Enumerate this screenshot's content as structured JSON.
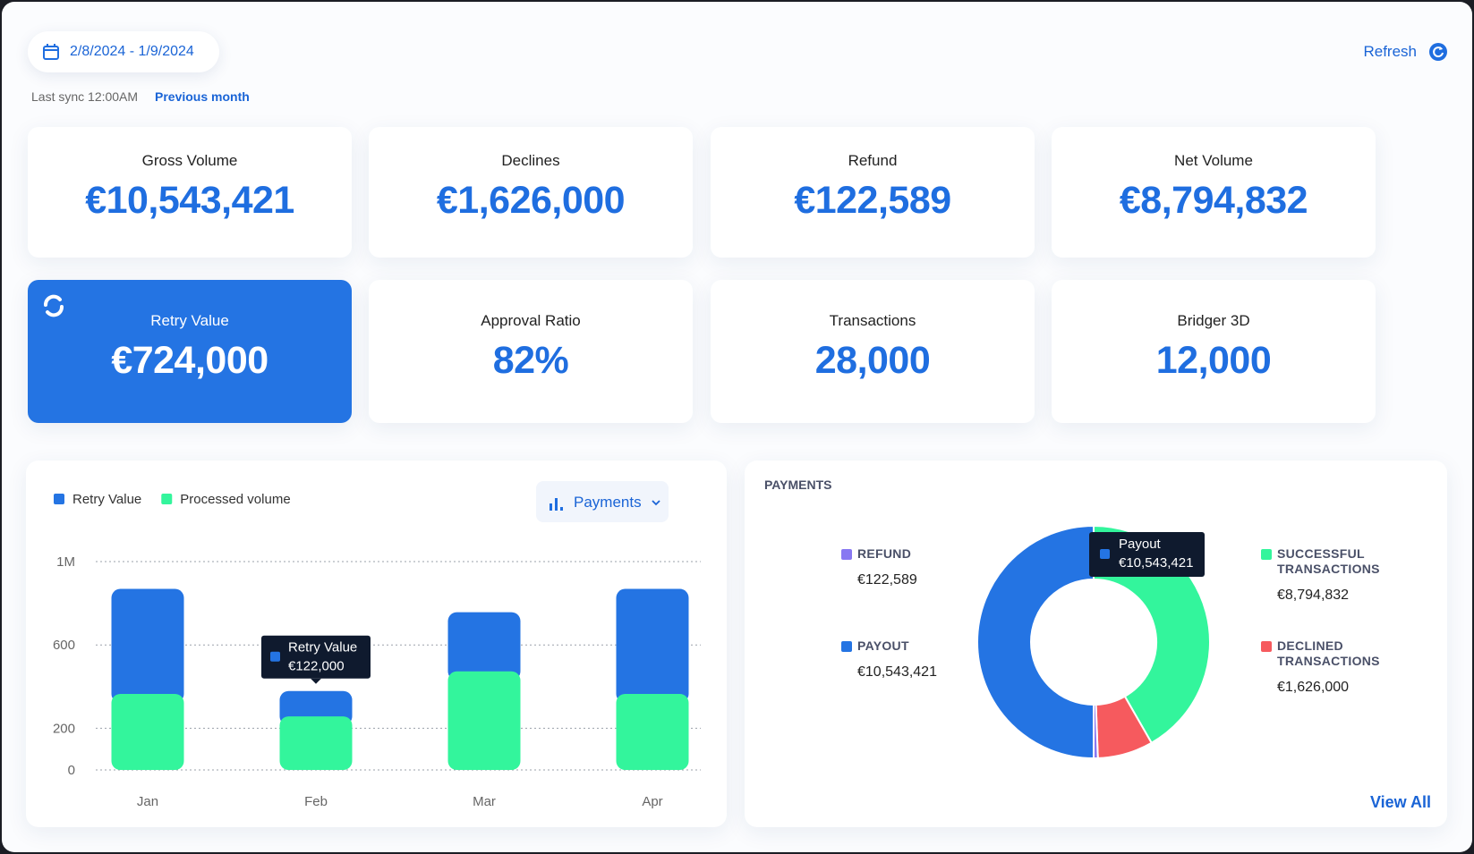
{
  "header": {
    "date_range": "2/8/2024 - 1/9/2024",
    "sync": "Last sync 12:00AM",
    "period": "Previous month",
    "refresh": "Refresh"
  },
  "cards": [
    {
      "label": "Gross Volume",
      "value": "€10,543,421"
    },
    {
      "label": "Declines",
      "value": "€1,626,000"
    },
    {
      "label": "Refund",
      "value": "€122,589"
    },
    {
      "label": "Net Volume",
      "value": "€8,794,832"
    },
    {
      "label": "Retry Value",
      "value": "€724,000"
    },
    {
      "label": "Approval Ratio",
      "value": "82%"
    },
    {
      "label": "Transactions",
      "value": "28,000"
    },
    {
      "label": "Bridger 3D",
      "value": "12,000"
    }
  ],
  "chart_data": [
    {
      "type": "bar",
      "stacked": true,
      "dropdown": "Payments",
      "categories": [
        "Jan",
        "Feb",
        "Mar",
        "Apr"
      ],
      "series": [
        {
          "name": "Retry Value",
          "color": "#2474e3",
          "values": [
            504,
            122,
            284,
            504
          ],
          "value_labels": [
            null,
            "€122,000",
            null,
            null
          ]
        },
        {
          "name": "Processed volume",
          "color": "#33f59c",
          "values": [
            365,
            257,
            473,
            365
          ]
        }
      ],
      "ylim": [
        0,
        1000
      ],
      "yticks": [
        0,
        200,
        600,
        {
          "value": 1000,
          "label": "1M"
        }
      ],
      "grid": true
    },
    {
      "type": "donut",
      "title": "PAYMENTS",
      "categories": [
        "REFUND",
        "PAYOUT",
        "SUCCESSFUL TRANSACTIONS",
        "DECLINED TRANSACTIONS"
      ],
      "values": [
        122589,
        10543421,
        8794832,
        1626000
      ],
      "value_labels": [
        "€122,589",
        "€10,543,421",
        "€8,794,832",
        "€1,626,000"
      ],
      "colors": [
        "#8878f2",
        "#2474e3",
        "#33f59c",
        "#f65a5e"
      ],
      "tooltip_label": "Payout",
      "link": "View All"
    }
  ]
}
